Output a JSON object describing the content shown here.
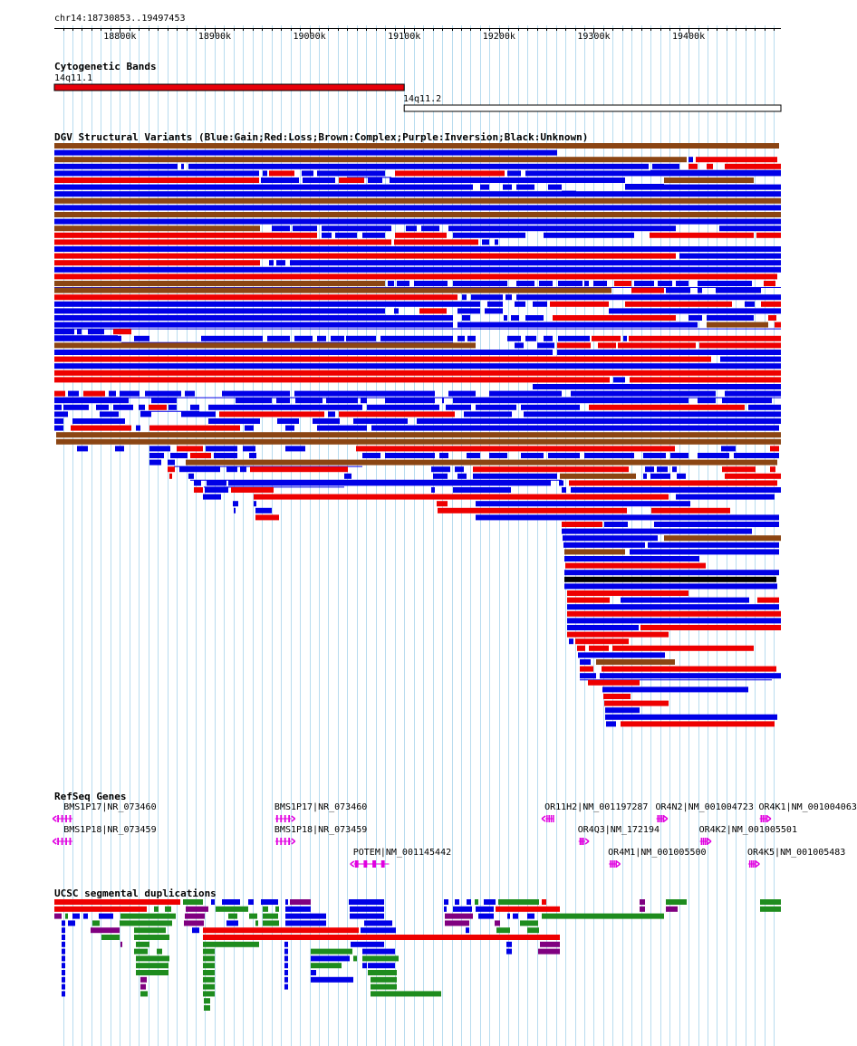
{
  "locus": "chr14:18730853..19497453",
  "ruler": {
    "start": 18730853,
    "end": 19497453,
    "ticks": [
      {
        "pos": 18800000,
        "label": "18800k"
      },
      {
        "pos": 18900000,
        "label": "18900k"
      },
      {
        "pos": 19000000,
        "label": "19000k"
      },
      {
        "pos": 19100000,
        "label": "19100k"
      },
      {
        "pos": 19200000,
        "label": "19200k"
      },
      {
        "pos": 19300000,
        "label": "19300k"
      },
      {
        "pos": 19400000,
        "label": "19400k"
      }
    ]
  },
  "tracks": {
    "cytoband": {
      "title": "Cytogenetic Bands",
      "bands": [
        {
          "name": "14q11.1",
          "start": 18730853,
          "end": 19100000,
          "color": "#e8000a"
        },
        {
          "name": "14q11.2",
          "start": 19100000,
          "end": 19497453,
          "color": "#ffffff"
        }
      ]
    },
    "dgv": {
      "title": "DGV Structural Variants (Blue:Gain;Red:Loss;Brown:Complex;Purple:Inversion;Black:Unknown)",
      "colors": {
        "gain": "#0000e6",
        "loss": "#ee0000",
        "complex": "#8b4513",
        "inversion": "#800080",
        "unknown": "#000000"
      }
    },
    "refseq": {
      "title": "RefSeq Genes",
      "color": "#e000e0",
      "genes": [
        {
          "label": "BMS1P17|NR_073460",
          "start": 18733000,
          "end": 18750000,
          "strand": "-",
          "row": 0
        },
        {
          "label": "BMS1P18|NR_073459",
          "start": 18733000,
          "end": 18750000,
          "strand": "-",
          "row": 1
        },
        {
          "label": "BMS1P17|NR_073460",
          "start": 18964000,
          "end": 18981000,
          "strand": "+",
          "row": 0
        },
        {
          "label": "BMS1P18|NR_073459",
          "start": 18964000,
          "end": 18981000,
          "strand": "+",
          "row": 1
        },
        {
          "label": "POTEM|NM_001145442",
          "start": 19047000,
          "end": 19084000,
          "strand": "-",
          "row": 2
        },
        {
          "label": "OR11H2|NM_001197287",
          "start": 19249000,
          "end": 19258000,
          "strand": "-",
          "row": 0
        },
        {
          "label": "OR4N2|NM_001004723",
          "start": 19366000,
          "end": 19374000,
          "strand": "+",
          "row": 0
        },
        {
          "label": "OR4K1|NM_001004063",
          "start": 19475000,
          "end": 19483000,
          "strand": "+",
          "row": 0
        },
        {
          "label": "OR4Q3|NM_172194",
          "start": 19284000,
          "end": 19291000,
          "strand": "+",
          "row": 1
        },
        {
          "label": "OR4K2|NM_001005501",
          "start": 19412000,
          "end": 19420000,
          "strand": "+",
          "row": 1
        },
        {
          "label": "OR4M1|NM_001005500",
          "start": 19316000,
          "end": 19324000,
          "strand": "+",
          "row": 2
        },
        {
          "label": "OR4K5|NM_001005483",
          "start": 19463000,
          "end": 19471000,
          "strand": "+",
          "row": 2
        }
      ]
    },
    "segdup": {
      "title": "UCSC segmental duplications",
      "colors": {
        "red": "#ee0000",
        "green": "#1e8c1e",
        "blue": "#0000e6",
        "purple": "#800080"
      }
    }
  }
}
